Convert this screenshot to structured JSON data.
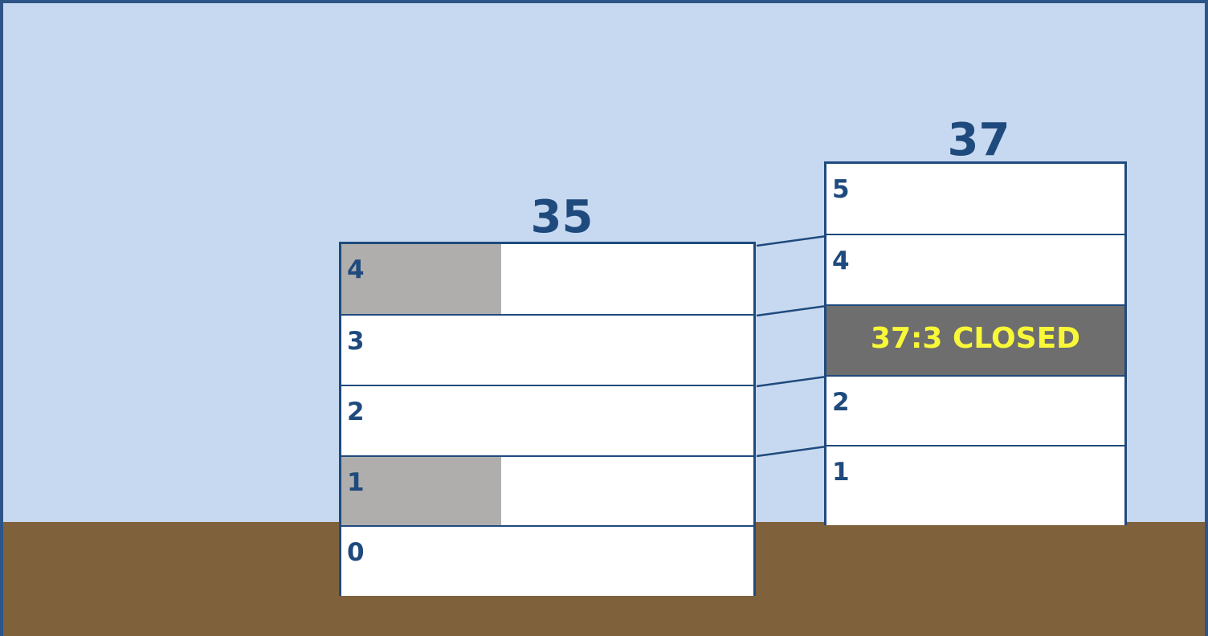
{
  "buildings": [
    {
      "name": "35",
      "floors": [
        {
          "label": "4",
          "shaded": true
        },
        {
          "label": "3",
          "shaded": false
        },
        {
          "label": "2",
          "shaded": false
        },
        {
          "label": "1",
          "shaded": true
        },
        {
          "label": "0",
          "shaded": false
        }
      ]
    },
    {
      "name": "37",
      "floors": [
        {
          "label": "5"
        },
        {
          "label": "4"
        },
        {
          "label": "37:3 CLOSED",
          "closed": true
        },
        {
          "label": "2"
        },
        {
          "label": "1"
        }
      ]
    }
  ],
  "colors": {
    "sky": "#c7d9f0",
    "ground": "#7f613c",
    "outline": "#1f4a7d",
    "shade": "#afaeac",
    "closed_bg": "#6e6e6e",
    "closed_text": "#f8f838"
  }
}
